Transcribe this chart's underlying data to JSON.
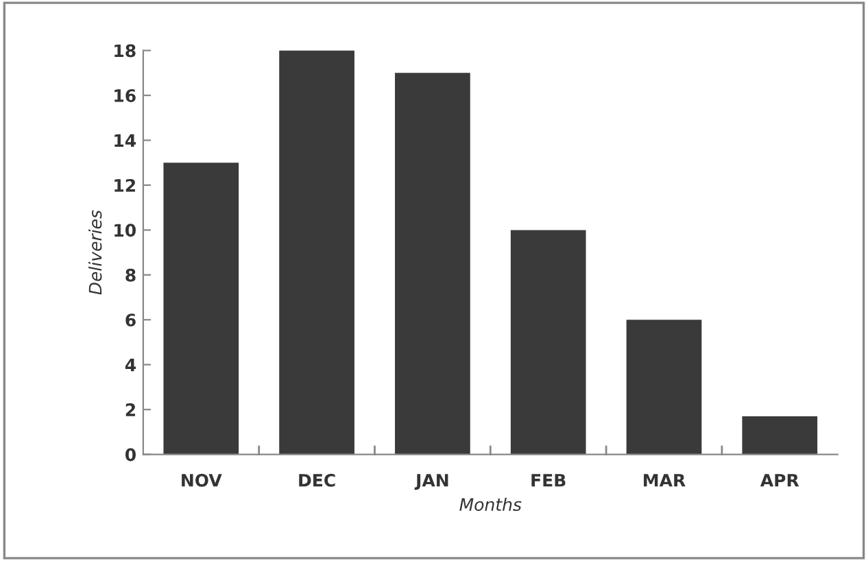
{
  "chart_data": {
    "type": "bar",
    "xlabel": "Months",
    "ylabel": "Deliveries",
    "categories": [
      "NOV",
      "DEC",
      "JAN",
      "FEB",
      "MAR",
      "APR"
    ],
    "values": [
      13,
      18,
      17,
      10,
      6,
      1.7
    ],
    "color": "#3a3a3a",
    "ylim": [
      0,
      18
    ],
    "yticks": [
      0,
      2,
      4,
      6,
      8,
      10,
      12,
      14,
      16,
      18
    ],
    "grid": false,
    "legend": false
  }
}
